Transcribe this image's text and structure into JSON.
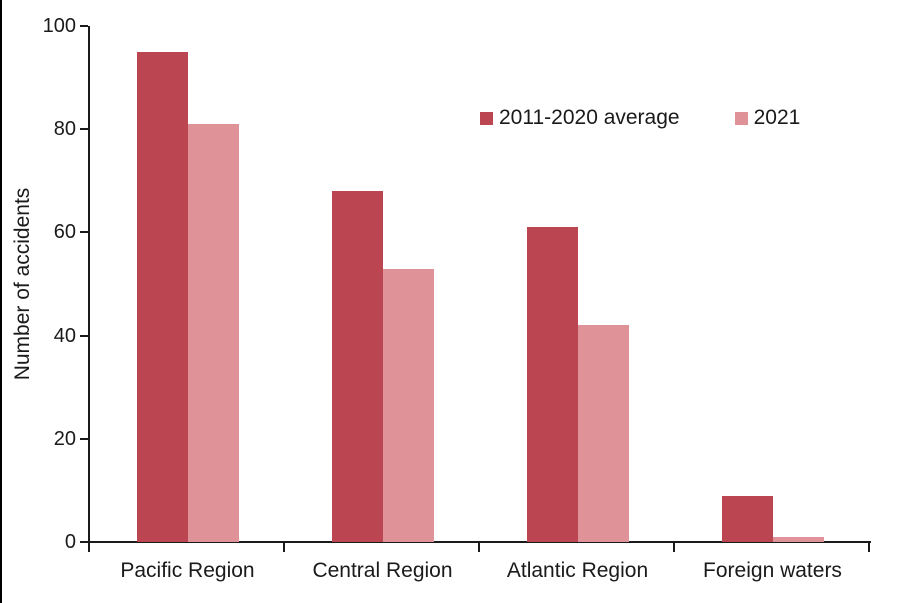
{
  "chart_data": {
    "type": "bar",
    "title": "",
    "ylabel": "Number of accidents",
    "xlabel": "",
    "ylim": [
      0,
      100
    ],
    "yticks": [
      0,
      20,
      40,
      60,
      80,
      100
    ],
    "grid": false,
    "legend_position": "top-right-inside",
    "categories": [
      "Pacific Region",
      "Central Region",
      "Atlantic Region",
      "Foreign waters"
    ],
    "series": [
      {
        "name": "2011-2020 average",
        "color": "#bb4551",
        "values": [
          95,
          68,
          61,
          9
        ]
      },
      {
        "name": "2021",
        "color": "#df9298",
        "values": [
          81,
          53,
          42,
          1
        ]
      }
    ]
  },
  "colors": {
    "axis": "#1a1a1a",
    "text": "#1a1a1a",
    "left_edge_line": "#000000",
    "background": "#ffffff"
  }
}
